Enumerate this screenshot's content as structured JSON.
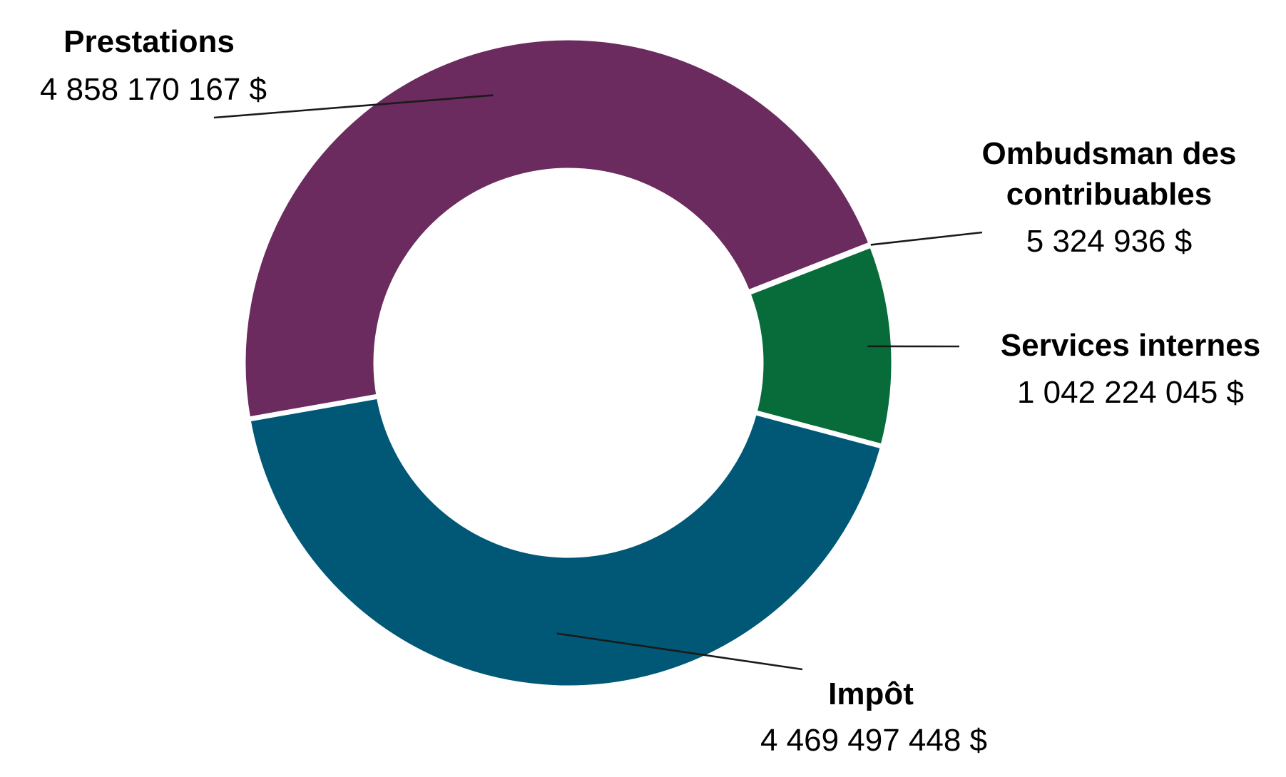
{
  "chart_data": {
    "type": "pie",
    "subtype": "donut",
    "slices": [
      {
        "name": "Prestations",
        "value": 4858170167,
        "value_label": "4 858 170 167 $",
        "color": "#6b2b5e"
      },
      {
        "name": "Ombudsman des contribuables",
        "name_lines": [
          "Ombudsman des",
          "contribuables"
        ],
        "value": 5324936,
        "value_label": "5 324 936 $",
        "color": "#a86322"
      },
      {
        "name": "Services internes",
        "value": 1042224045,
        "value_label": "1 042 224 045 $",
        "color": "#076b3a"
      },
      {
        "name": "Impôt",
        "value": 4469497448,
        "value_label": "4 469 497 448 $",
        "color": "#005876"
      }
    ],
    "legend": "none",
    "labels": "outside with leader lines"
  }
}
